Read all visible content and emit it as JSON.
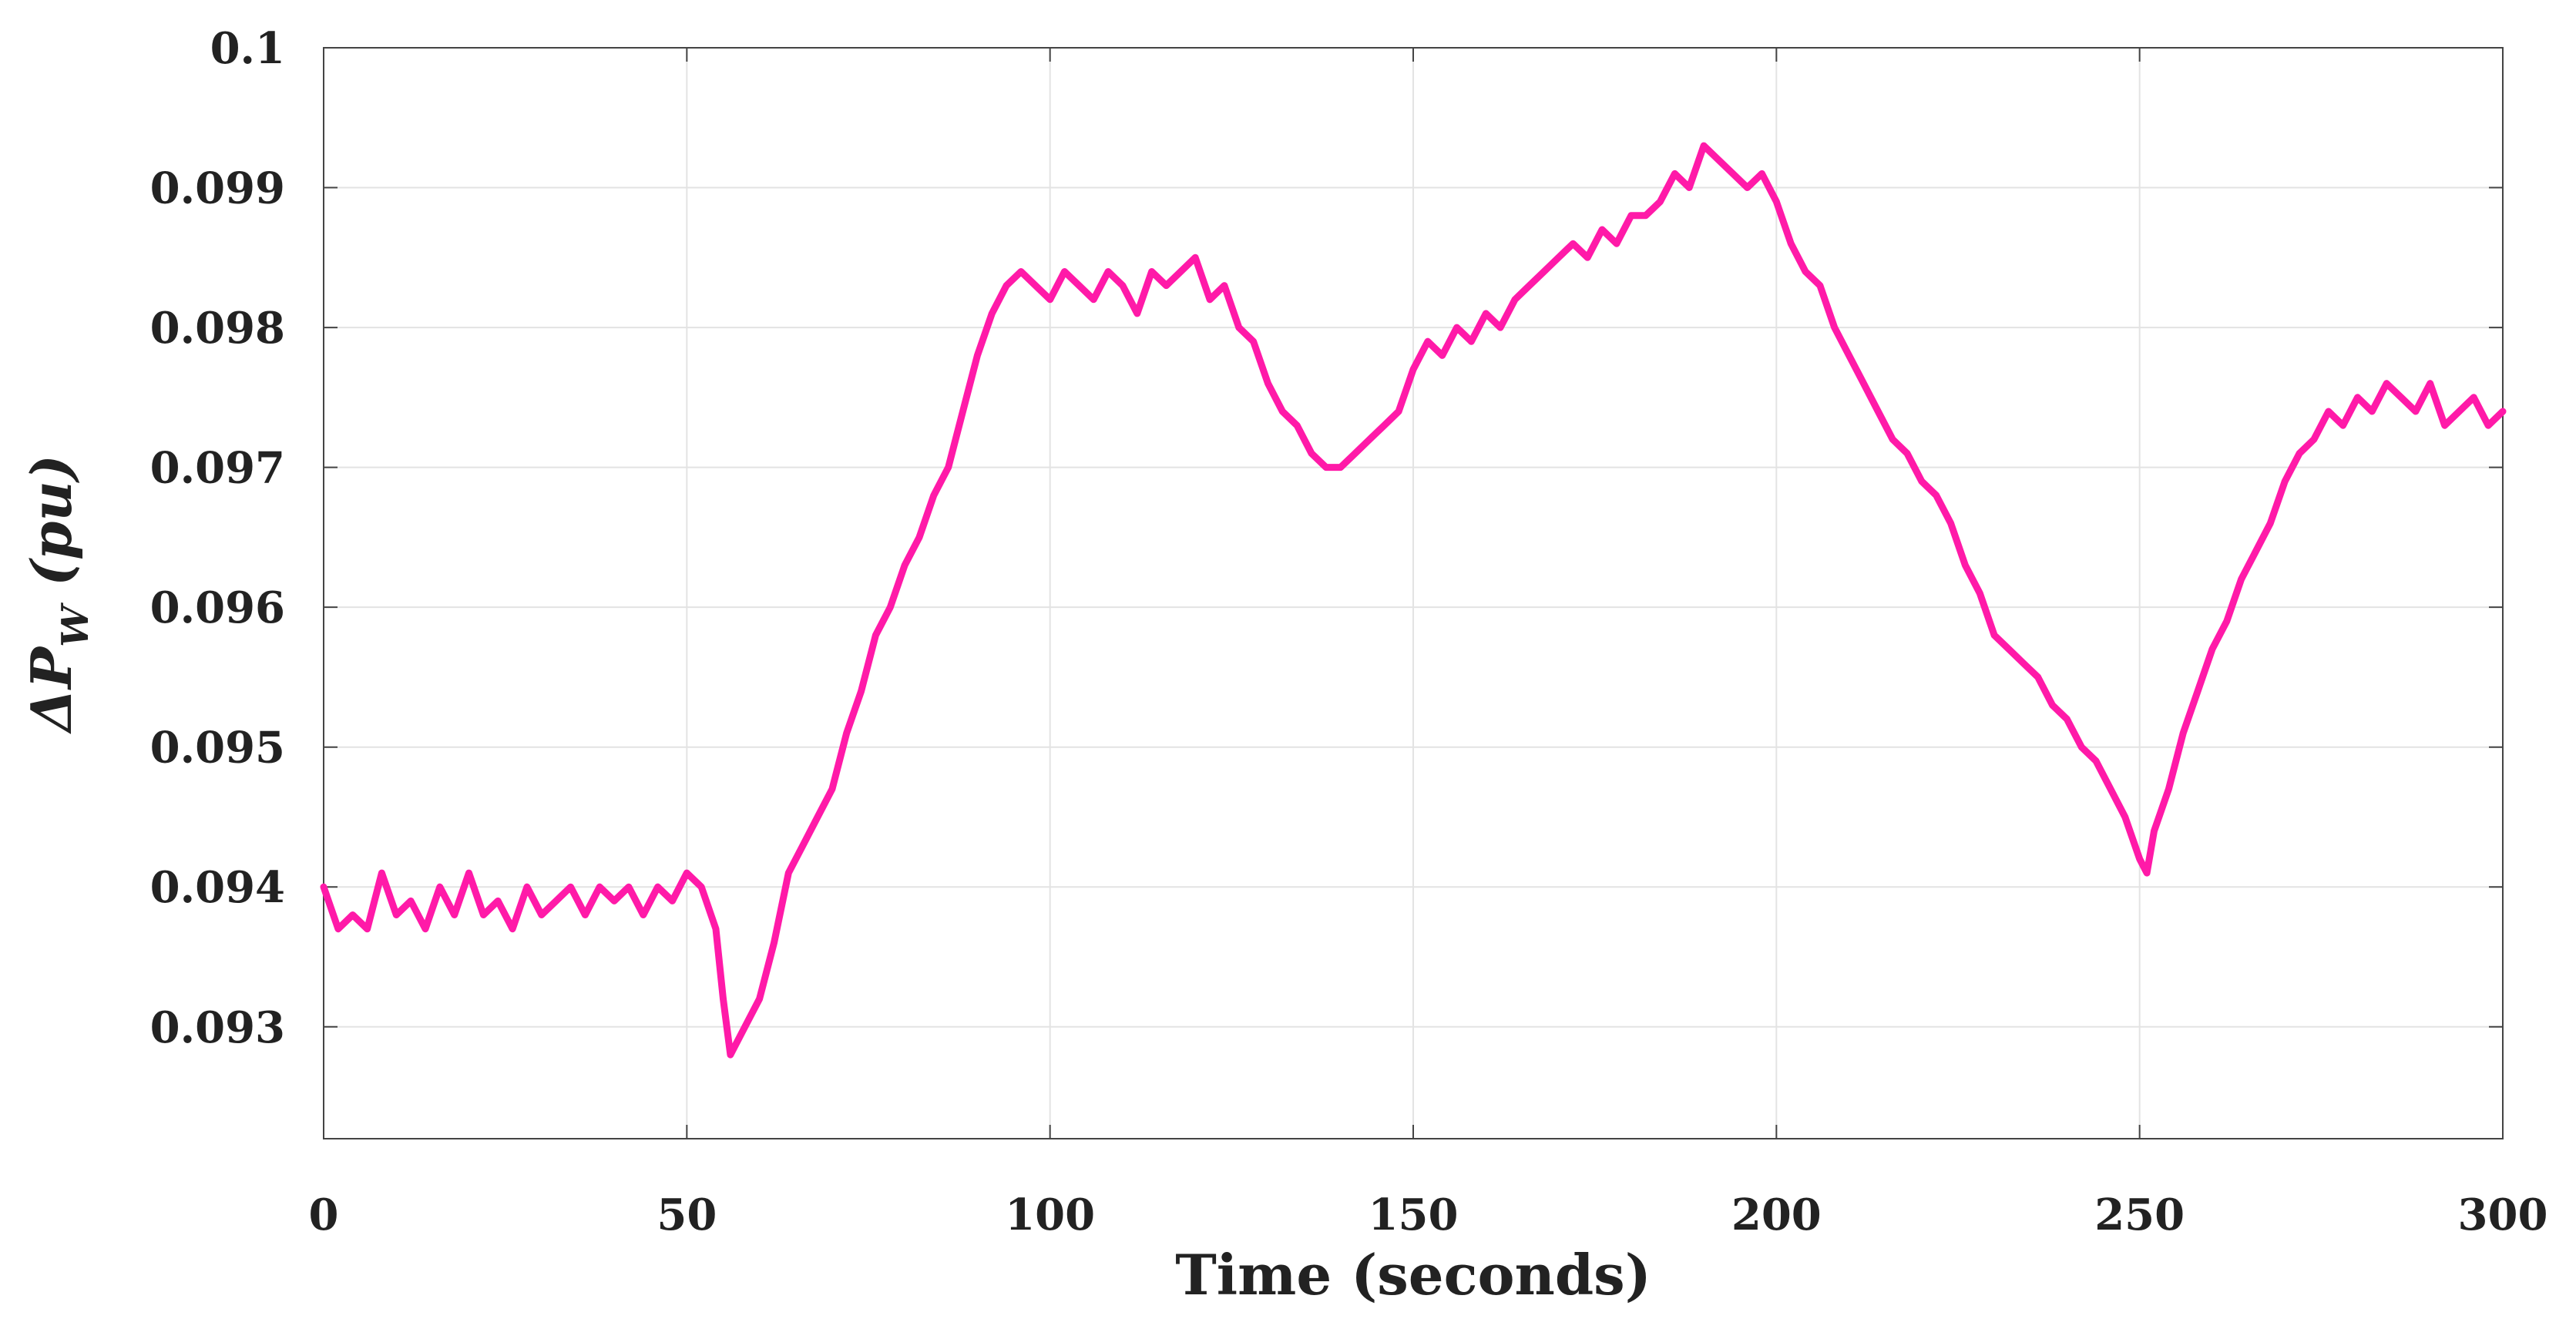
{
  "chart_data": {
    "type": "line",
    "title": "",
    "xlabel": "Time (seconds)",
    "ylabel": {
      "main": "ΔP",
      "subscript": "W",
      "suffix": " (pu)"
    },
    "xlim": [
      0,
      300
    ],
    "ylim": [
      0.0922,
      0.1
    ],
    "xticks": [
      0,
      50,
      100,
      150,
      200,
      250,
      300
    ],
    "xtick_labels": [
      "0",
      "50",
      "100",
      "150",
      "200",
      "250",
      "300"
    ],
    "yticks": [
      0.093,
      0.094,
      0.095,
      0.096,
      0.097,
      0.098,
      0.099,
      0.1
    ],
    "ytick_labels": [
      "0.093",
      "0.094",
      "0.095",
      "0.096",
      "0.097",
      "0.098",
      "0.099",
      "0.1"
    ],
    "grid": true,
    "series": [
      {
        "color": "#ff1aa8",
        "x": [
          0,
          2,
          4,
          6,
          8,
          10,
          12,
          14,
          16,
          18,
          20,
          22,
          24,
          26,
          28,
          30,
          32,
          34,
          36,
          38,
          40,
          42,
          44,
          46,
          48,
          50,
          52,
          54,
          55,
          56,
          58,
          60,
          62,
          64,
          66,
          68,
          70,
          72,
          74,
          76,
          78,
          80,
          82,
          84,
          86,
          88,
          90,
          92,
          94,
          96,
          98,
          100,
          102,
          104,
          106,
          108,
          110,
          112,
          114,
          116,
          118,
          120,
          122,
          124,
          126,
          128,
          130,
          132,
          134,
          136,
          138,
          140,
          142,
          144,
          146,
          148,
          150,
          152,
          154,
          156,
          158,
          160,
          162,
          164,
          166,
          168,
          170,
          172,
          174,
          176,
          178,
          180,
          182,
          184,
          186,
          188,
          190,
          192,
          194,
          196,
          198,
          200,
          202,
          204,
          206,
          208,
          210,
          212,
          214,
          216,
          218,
          220,
          222,
          224,
          226,
          228,
          230,
          232,
          234,
          236,
          238,
          240,
          242,
          244,
          246,
          248,
          250,
          251,
          252,
          254,
          256,
          258,
          260,
          262,
          264,
          266,
          268,
          270,
          272,
          274,
          276,
          278,
          280,
          282,
          284,
          286,
          288,
          290,
          292,
          294,
          296,
          298,
          300
        ],
        "y": [
          0.094,
          0.0937,
          0.0938,
          0.0937,
          0.0941,
          0.0938,
          0.0939,
          0.0937,
          0.094,
          0.0938,
          0.0941,
          0.0938,
          0.0939,
          0.0937,
          0.094,
          0.0938,
          0.0939,
          0.094,
          0.0938,
          0.094,
          0.0939,
          0.094,
          0.0938,
          0.094,
          0.0939,
          0.0941,
          0.094,
          0.0937,
          0.0932,
          0.0928,
          0.093,
          0.0932,
          0.0936,
          0.0941,
          0.0943,
          0.0945,
          0.0947,
          0.0951,
          0.0954,
          0.0958,
          0.096,
          0.0963,
          0.0965,
          0.0968,
          0.097,
          0.0974,
          0.0978,
          0.0981,
          0.0983,
          0.0984,
          0.0983,
          0.0982,
          0.0984,
          0.0983,
          0.0982,
          0.0984,
          0.0983,
          0.0981,
          0.0984,
          0.0983,
          0.0984,
          0.0985,
          0.0982,
          0.0983,
          0.098,
          0.0979,
          0.0976,
          0.0974,
          0.0973,
          0.0971,
          0.097,
          0.097,
          0.0971,
          0.0972,
          0.0973,
          0.0974,
          0.0977,
          0.0979,
          0.0978,
          0.098,
          0.0979,
          0.0981,
          0.098,
          0.0982,
          0.0983,
          0.0984,
          0.0985,
          0.0986,
          0.0985,
          0.0987,
          0.0986,
          0.0988,
          0.0988,
          0.0989,
          0.0991,
          0.099,
          0.0993,
          0.0992,
          0.0991,
          0.099,
          0.0991,
          0.0989,
          0.0986,
          0.0984,
          0.0983,
          0.098,
          0.0978,
          0.0976,
          0.0974,
          0.0972,
          0.0971,
          0.0969,
          0.0968,
          0.0966,
          0.0963,
          0.0961,
          0.0958,
          0.0957,
          0.0956,
          0.0955,
          0.0953,
          0.0952,
          0.095,
          0.0949,
          0.0947,
          0.0945,
          0.0942,
          0.0941,
          0.0944,
          0.0947,
          0.0951,
          0.0954,
          0.0957,
          0.0959,
          0.0962,
          0.0964,
          0.0966,
          0.0969,
          0.0971,
          0.0972,
          0.0974,
          0.0973,
          0.0975,
          0.0974,
          0.0976,
          0.0975,
          0.0974,
          0.0976,
          0.0973,
          0.0974,
          0.0975,
          0.0973,
          0.0974
        ]
      }
    ]
  }
}
